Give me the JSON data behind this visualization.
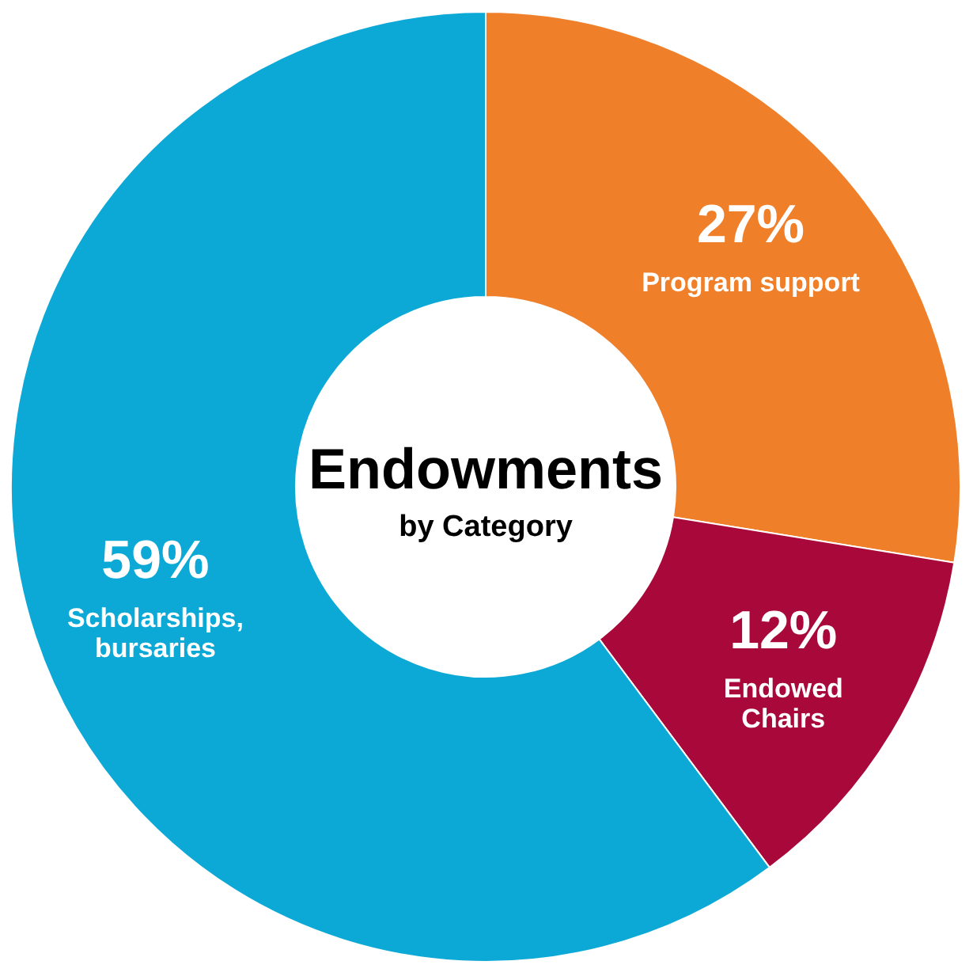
{
  "chart_data": {
    "type": "donut",
    "title": "Endowments",
    "subtitle": "by Category",
    "categories": [
      "Program support",
      "Endowed\nChairs",
      "Scholarships,\nbursaries"
    ],
    "values": [
      27,
      12,
      59
    ],
    "value_labels": [
      "27%",
      "12%",
      "59%"
    ],
    "colors": [
      "#f07f2a",
      "#a8093a",
      "#0da9d6"
    ],
    "legend": false
  }
}
